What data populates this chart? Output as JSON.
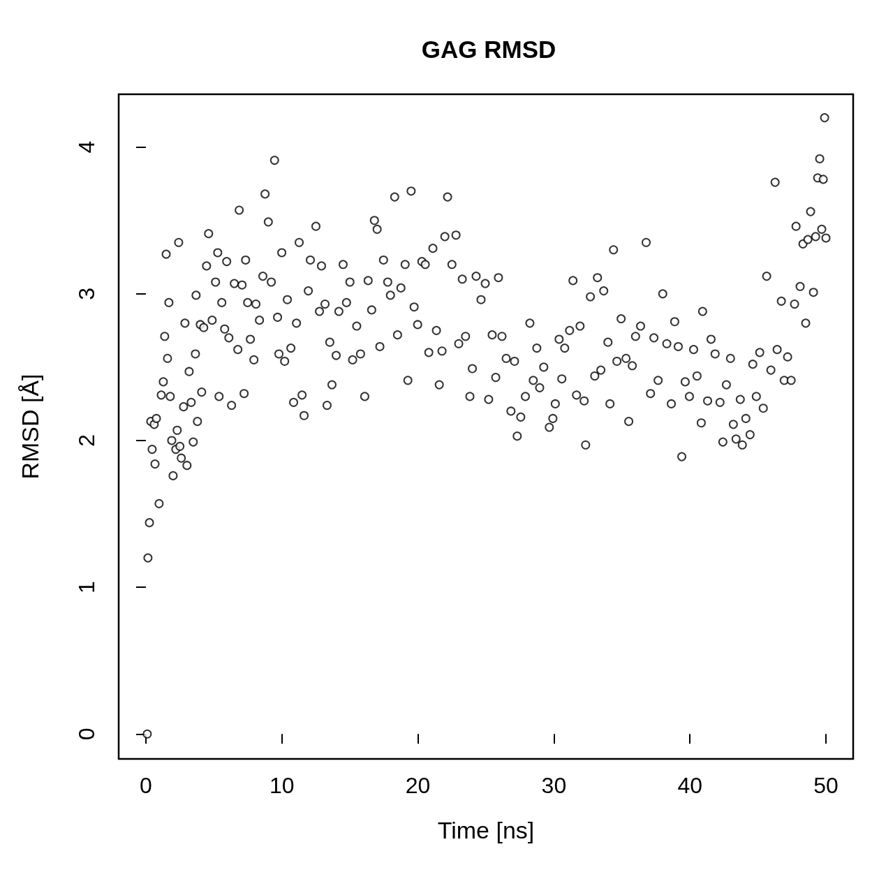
{
  "chart_data": {
    "type": "scatter",
    "title": "GAG RMSD",
    "xlabel": "Time [ns]",
    "ylabel": "RMSD [Å]",
    "xlim": [
      -2,
      52
    ],
    "ylim": [
      -0.17,
      4.36
    ],
    "xticks": [
      0,
      10,
      20,
      30,
      40,
      50
    ],
    "yticks": [
      0,
      1,
      2,
      3,
      4
    ],
    "marker": "circle",
    "series": [
      {
        "color": "#000000",
        "x": [
          0.1,
          0.15,
          0.26,
          0.36,
          0.46,
          0.61,
          0.67,
          0.77,
          0.97,
          1.13,
          1.28,
          1.38,
          1.49,
          1.59,
          1.69,
          1.79,
          1.9,
          2.0,
          2.2,
          2.3,
          2.41,
          2.5,
          2.6,
          2.77,
          2.87,
          3.02,
          3.18,
          3.33,
          3.48,
          3.64,
          3.69,
          3.79,
          4.0,
          4.1,
          4.25,
          4.46,
          4.61,
          4.87,
          5.12,
          5.28,
          5.38,
          5.58,
          5.79,
          5.94,
          6.1,
          6.3,
          6.5,
          6.76,
          6.86,
          7.07,
          7.22,
          7.33,
          7.48,
          7.68,
          7.94,
          8.09,
          8.35,
          8.6,
          8.76,
          9.0,
          9.22,
          9.46,
          9.68,
          9.78,
          9.99,
          10.2,
          10.4,
          10.66,
          10.86,
          11.07,
          11.27,
          11.48,
          11.63,
          11.94,
          12.09,
          12.5,
          12.76,
          12.91,
          13.17,
          13.32,
          13.52,
          13.68,
          13.99,
          14.19,
          14.5,
          14.75,
          15.0,
          15.2,
          15.5,
          15.78,
          16.09,
          16.34,
          16.6,
          16.8,
          17.0,
          17.2,
          17.47,
          17.78,
          17.98,
          18.29,
          18.5,
          18.75,
          19.06,
          19.26,
          19.5,
          19.72,
          19.98,
          20.29,
          20.54,
          20.8,
          21.1,
          21.36,
          21.57,
          21.77,
          21.98,
          22.18,
          22.5,
          22.8,
          23.0,
          23.26,
          23.5,
          23.82,
          24.0,
          24.28,
          24.64,
          24.95,
          25.2,
          25.46,
          25.72,
          25.92,
          26.18,
          26.49,
          26.84,
          27.1,
          27.3,
          27.56,
          27.9,
          28.23,
          28.48,
          28.74,
          28.95,
          29.25,
          29.66,
          29.92,
          30.1,
          30.38,
          30.58,
          30.79,
          31.15,
          31.4,
          31.66,
          31.92,
          32.22,
          32.33,
          32.68,
          33.0,
          33.2,
          33.45,
          33.66,
          33.97,
          34.12,
          34.38,
          34.63,
          34.94,
          35.3,
          35.5,
          35.76,
          36.0,
          36.37,
          36.78,
          37.1,
          37.35,
          37.66,
          38.0,
          38.3,
          38.63,
          38.88,
          39.14,
          39.4,
          39.65,
          39.96,
          40.27,
          40.52,
          40.83,
          40.93,
          41.3,
          41.55,
          41.85,
          42.21,
          42.42,
          42.68,
          42.98,
          43.19,
          43.39,
          43.7,
          43.85,
          44.11,
          44.42,
          44.62,
          44.88,
          45.13,
          45.39,
          45.64,
          45.95,
          46.26,
          46.41,
          46.72,
          46.93,
          47.18,
          47.44,
          47.69,
          47.8,
          48.1,
          48.31,
          48.51,
          48.67,
          48.87,
          49.08,
          49.24,
          49.39,
          49.54,
          49.69,
          49.8,
          49.9,
          50.0
        ],
        "values": [
          0,
          1.2,
          1.44,
          2.13,
          1.94,
          2.11,
          1.84,
          2.15,
          1.57,
          2.31,
          2.4,
          2.71,
          3.27,
          2.56,
          2.94,
          2.3,
          2.0,
          1.76,
          1.94,
          2.07,
          3.35,
          1.96,
          1.88,
          2.23,
          2.8,
          1.83,
          2.47,
          2.26,
          1.99,
          2.59,
          2.99,
          2.13,
          2.79,
          2.33,
          2.77,
          3.19,
          3.41,
          2.82,
          3.08,
          3.28,
          2.3,
          2.94,
          2.76,
          3.22,
          2.7,
          2.24,
          3.07,
          2.62,
          3.57,
          3.06,
          2.32,
          3.23,
          2.94,
          2.69,
          2.55,
          2.93,
          2.82,
          3.12,
          3.68,
          3.49,
          3.08,
          3.91,
          2.84,
          2.59,
          3.28,
          2.54,
          2.96,
          2.63,
          2.26,
          2.8,
          3.35,
          2.31,
          2.17,
          3.02,
          3.23,
          3.46,
          2.88,
          3.19,
          2.93,
          2.24,
          2.67,
          2.38,
          2.58,
          2.88,
          3.2,
          2.94,
          3.08,
          2.55,
          2.78,
          2.59,
          2.3,
          3.09,
          2.89,
          3.5,
          3.44,
          2.64,
          3.23,
          3.08,
          2.99,
          3.66,
          2.72,
          3.04,
          3.2,
          2.41,
          3.7,
          2.91,
          2.79,
          3.22,
          3.2,
          2.6,
          3.31,
          2.75,
          2.38,
          2.61,
          3.39,
          3.66,
          3.2,
          3.4,
          2.66,
          3.1,
          2.71,
          2.3,
          2.49,
          3.12,
          2.96,
          3.07,
          2.28,
          2.72,
          2.43,
          3.11,
          2.71,
          2.56,
          2.2,
          2.54,
          2.03,
          2.16,
          2.3,
          2.8,
          2.41,
          2.63,
          2.36,
          2.5,
          2.09,
          2.15,
          2.25,
          2.69,
          2.42,
          2.63,
          2.75,
          3.09,
          2.31,
          2.78,
          2.27,
          1.97,
          2.98,
          2.44,
          3.11,
          2.48,
          3.02,
          2.67,
          2.25,
          3.3,
          2.54,
          2.83,
          2.56,
          2.13,
          2.51,
          2.71,
          2.78,
          3.35,
          2.32,
          2.7,
          2.41,
          3.0,
          2.66,
          2.25,
          2.81,
          2.64,
          1.89,
          2.4,
          2.3,
          2.62,
          2.44,
          2.12,
          2.88,
          2.27,
          2.69,
          2.59,
          2.26,
          1.99,
          2.38,
          2.56,
          2.11,
          2.01,
          2.28,
          1.97,
          2.15,
          2.04,
          2.52,
          2.3,
          2.6,
          2.22,
          3.12,
          2.48,
          3.76,
          2.62,
          2.95,
          2.41,
          2.57,
          2.41,
          2.93,
          3.46,
          3.05,
          3.34,
          2.8,
          3.37,
          3.56,
          3.01,
          3.39,
          3.79,
          3.92,
          3.44,
          3.78,
          4.2,
          3.38
        ]
      }
    ]
  }
}
